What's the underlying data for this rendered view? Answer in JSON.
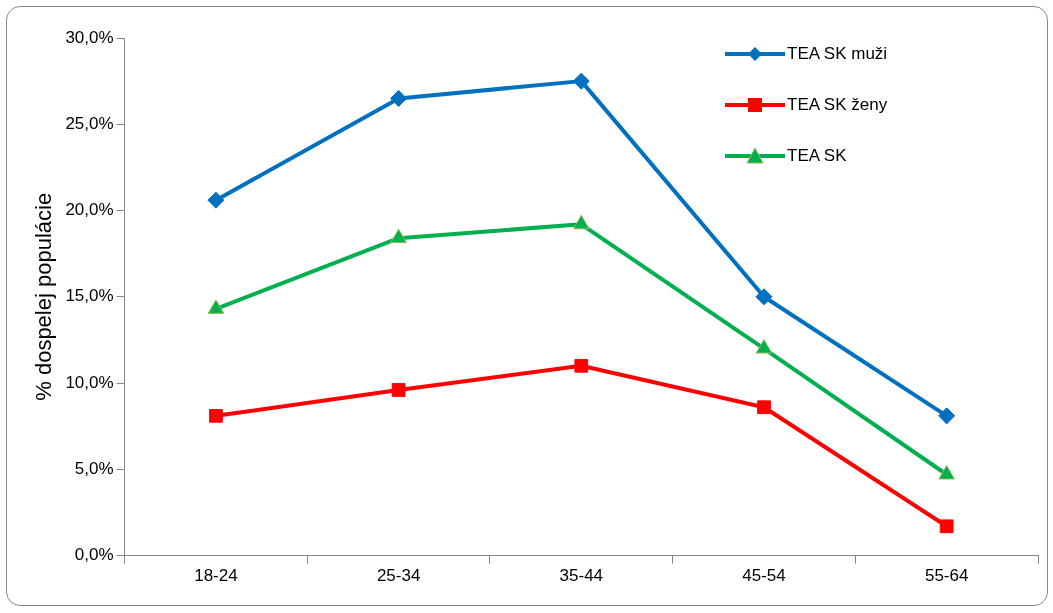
{
  "chart_data": {
    "type": "line",
    "ylabel": "% dospelej populácie",
    "categories": [
      "18-24",
      "25-34",
      "35-44",
      "45-54",
      "55-64"
    ],
    "series": [
      {
        "name": "TEA SK muži",
        "color": "#0070c0",
        "marker": "diamond",
        "values": [
          20.6,
          26.5,
          27.5,
          15.0,
          8.1
        ]
      },
      {
        "name": "TEA SK ženy",
        "color": "#ff0000",
        "marker": "square",
        "values": [
          8.1,
          9.6,
          11.0,
          8.6,
          1.7
        ]
      },
      {
        "name": "TEA SK",
        "color": "#00b050",
        "marker": "triangle",
        "values": [
          14.3,
          18.4,
          19.2,
          12.0,
          4.7
        ]
      }
    ],
    "ylim": [
      0,
      30
    ],
    "yticks": [
      {
        "value": 0,
        "label": "0,0%"
      },
      {
        "value": 5,
        "label": "5,0%"
      },
      {
        "value": 10,
        "label": "10,0%"
      },
      {
        "value": 15,
        "label": "15,0%"
      },
      {
        "value": 20,
        "label": "20,0%"
      },
      {
        "value": 25,
        "label": "25,0%"
      },
      {
        "value": 30,
        "label": "30,0%"
      }
    ],
    "grid": false,
    "legend": "top right",
    "line_style": "solid"
  }
}
